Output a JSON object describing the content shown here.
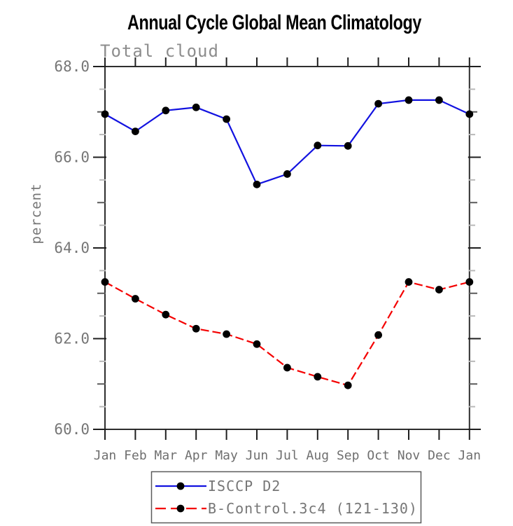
{
  "chart_data": {
    "type": "line",
    "title": "Annual Cycle Global Mean Climatology",
    "subtitle": "Total cloud",
    "xlabel": "",
    "ylabel": "percent",
    "categories": [
      "Jan",
      "Feb",
      "Mar",
      "Apr",
      "May",
      "Jun",
      "Jul",
      "Aug",
      "Sep",
      "Oct",
      "Nov",
      "Dec",
      "Jan"
    ],
    "ylim": [
      60.0,
      68.0
    ],
    "ytick_major_step": 2.0,
    "ytick_minor_step": 0.5,
    "ytick_labels": [
      "60.0",
      "62.0",
      "64.0",
      "66.0",
      "68.0"
    ],
    "grid": "off",
    "legend_position": "bottom",
    "series": [
      {
        "name": "ISCCP D2",
        "line_style": "solid",
        "color": "#1212e0",
        "marker": "circle",
        "marker_color": "#000000",
        "values": [
          66.95,
          66.57,
          67.03,
          67.1,
          66.84,
          65.4,
          65.63,
          66.26,
          66.25,
          67.18,
          67.26,
          67.26,
          66.95
        ]
      },
      {
        "name": "B-Control.3c4 (121-130)",
        "line_style": "dashed",
        "color": "#f40000",
        "marker": "circle",
        "marker_color": "#000000",
        "values": [
          63.25,
          62.88,
          62.53,
          62.22,
          62.1,
          61.88,
          61.36,
          61.16,
          60.97,
          62.08,
          63.25,
          63.08,
          63.25
        ]
      }
    ],
    "colors": {
      "axis_frame": "#2e2e2e",
      "tick_major": "#1f1f1f",
      "tick_integer": "#5a5a5a",
      "tick_half": "#b9b9b9",
      "tick_label_text": "#767676",
      "title_text": "#000000",
      "subtitle_text": "#8d8d8d",
      "legend_border": "#5a5a5a",
      "background": "#ffffff"
    }
  }
}
